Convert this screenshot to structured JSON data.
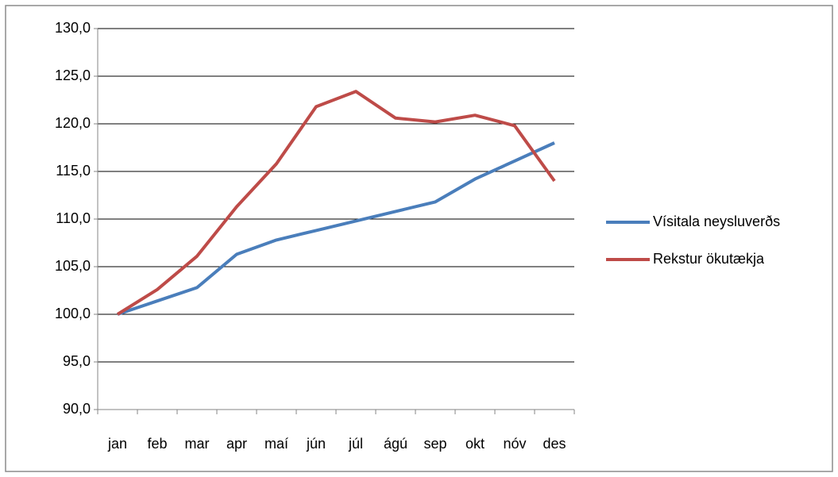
{
  "chart_data": {
    "type": "line",
    "categories": [
      "jan",
      "feb",
      "mar",
      "apr",
      "maí",
      "jún",
      "júl",
      "ágú",
      "sep",
      "okt",
      "nóv",
      "des"
    ],
    "series": [
      {
        "name": "Vísitala neysluverðs",
        "color": "#4a7ebb",
        "values": [
          100.0,
          101.4,
          102.8,
          106.3,
          107.8,
          108.8,
          109.8,
          110.8,
          111.8,
          114.2,
          116.1,
          118.0
        ]
      },
      {
        "name": "Rekstur ökutækja",
        "color": "#be4b48",
        "values": [
          100.0,
          102.6,
          106.1,
          111.3,
          115.8,
          121.8,
          123.4,
          120.6,
          120.2,
          120.9,
          119.8,
          114.0
        ]
      }
    ],
    "ylim": [
      90,
      130
    ],
    "yticks": [
      {
        "value": 90,
        "label": "90,0"
      },
      {
        "value": 95,
        "label": "95,0"
      },
      {
        "value": 100,
        "label": "100,0"
      },
      {
        "value": 105,
        "label": "105,0"
      },
      {
        "value": 110,
        "label": "110,0"
      },
      {
        "value": 115,
        "label": "115,0"
      },
      {
        "value": 120,
        "label": "120,0"
      },
      {
        "value": 125,
        "label": "125,0"
      },
      {
        "value": 130,
        "label": "130,0"
      }
    ],
    "grid": true
  }
}
